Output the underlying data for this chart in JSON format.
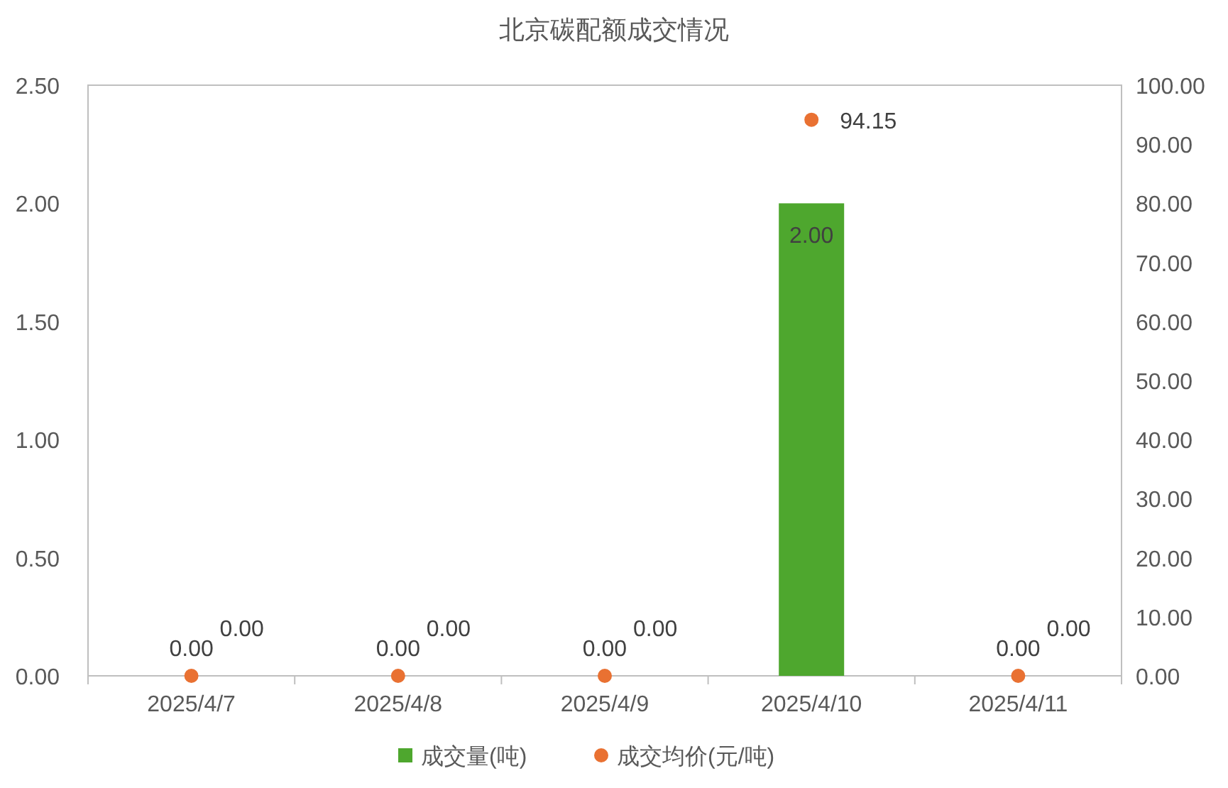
{
  "chart_data": {
    "type": "bar",
    "title": "北京碳配额成交情况",
    "categories": [
      "2025/4/7",
      "2025/4/8",
      "2025/4/9",
      "2025/4/10",
      "2025/4/11"
    ],
    "series": [
      {
        "name": "成交量(吨)",
        "color": "#4ea72e",
        "values": [
          0,
          0,
          0,
          2,
          0
        ],
        "value_labels": [
          "0.00",
          "0.00",
          "0.00",
          "2.00",
          "0.00"
        ]
      },
      {
        "name": "成交均价(元/吨)",
        "type": "scatter",
        "axis": "y2",
        "color": "#e97132",
        "marker": "circle",
        "values": [
          0,
          0,
          0,
          94.15,
          0
        ],
        "value_labels": [
          "0.00",
          "0.00",
          "0.00",
          "94.15",
          "0.00"
        ]
      }
    ],
    "ylim": [
      0,
      2.5
    ],
    "yticks": [
      {
        "value": 0,
        "label": "0.00"
      },
      {
        "value": 0.5,
        "label": "0.50"
      },
      {
        "value": 1,
        "label": "1.00"
      },
      {
        "value": 1.5,
        "label": "1.50"
      },
      {
        "value": 2,
        "label": "2.00"
      },
      {
        "value": 2.5,
        "label": "2.50"
      }
    ],
    "y2lim": [
      0,
      100
    ],
    "y2ticks": [
      {
        "value": 0,
        "label": "0.00"
      },
      {
        "value": 10,
        "label": "10.00"
      },
      {
        "value": 20,
        "label": "20.00"
      },
      {
        "value": 30,
        "label": "30.00"
      },
      {
        "value": 40,
        "label": "40.00"
      },
      {
        "value": 50,
        "label": "50.00"
      },
      {
        "value": 60,
        "label": "60.00"
      },
      {
        "value": 70,
        "label": "70.00"
      },
      {
        "value": 80,
        "label": "80.00"
      },
      {
        "value": 90,
        "label": "90.00"
      },
      {
        "value": 100,
        "label": "100.00"
      }
    ],
    "grid": false,
    "legend": "bottom"
  }
}
